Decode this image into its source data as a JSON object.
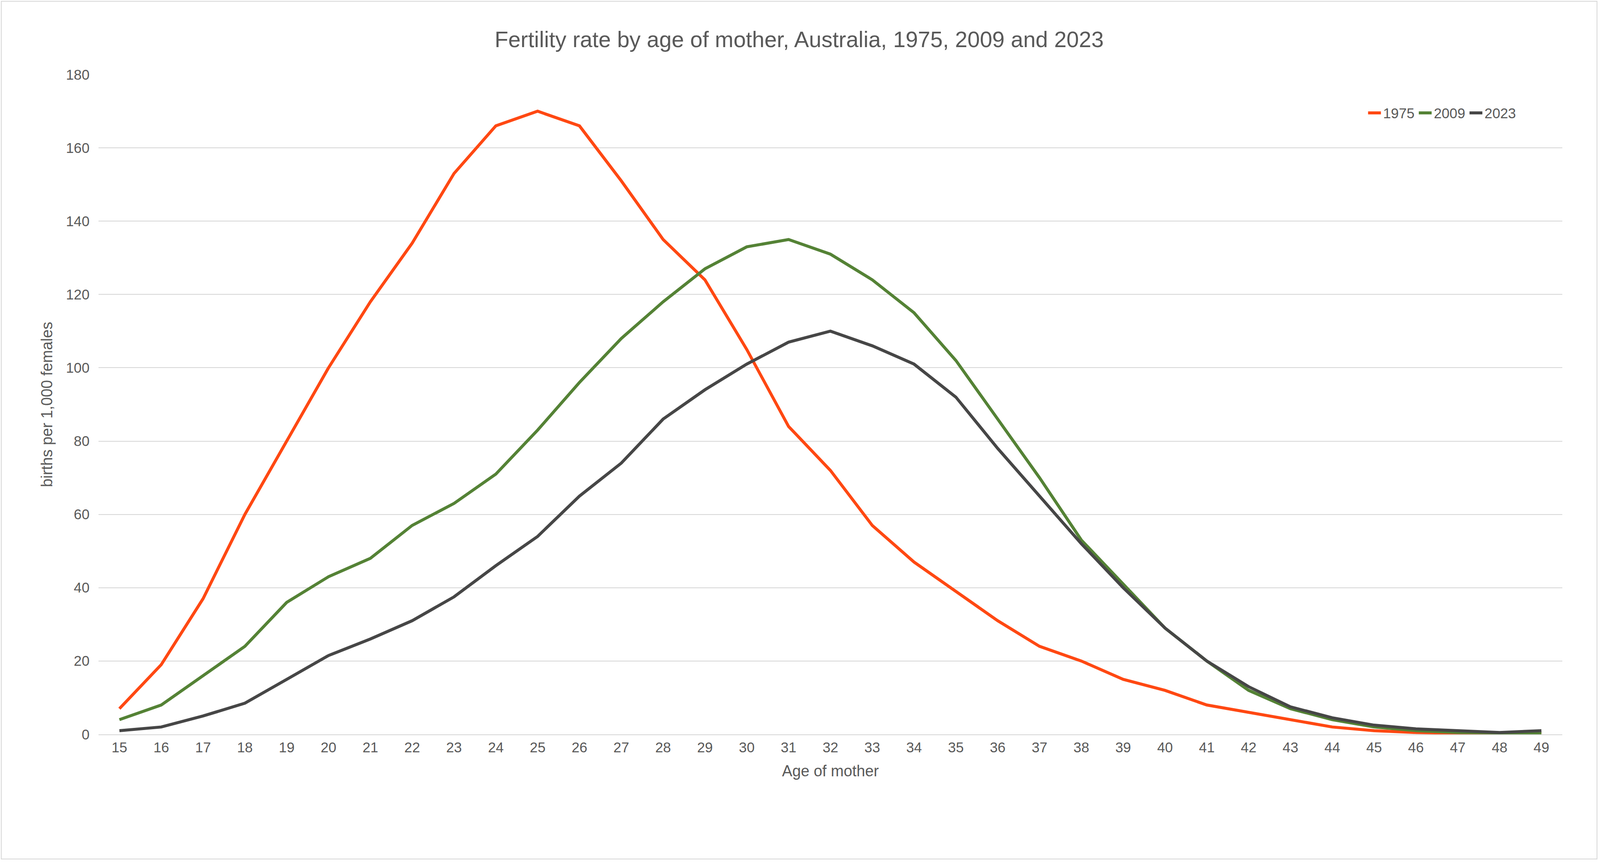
{
  "chart_data": {
    "type": "line",
    "title": "Fertility rate by age of mother, Australia, 1975, 2009 and 2023",
    "x_label": "Age of mother",
    "y_label": "births per 1,000 females",
    "x": [
      15,
      16,
      17,
      18,
      19,
      20,
      21,
      22,
      23,
      24,
      25,
      26,
      27,
      28,
      29,
      30,
      31,
      32,
      33,
      34,
      35,
      36,
      37,
      38,
      39,
      40,
      41,
      42,
      43,
      44,
      45,
      46,
      47,
      48,
      49
    ],
    "series": [
      {
        "name": "1975",
        "color": "#ff4812",
        "values": [
          7,
          19,
          37,
          60,
          80,
          100,
          118,
          134,
          153,
          166,
          170,
          166,
          151,
          135,
          124,
          105,
          84,
          72,
          57,
          47,
          39,
          31,
          24,
          20,
          15,
          12,
          8,
          6,
          4,
          2,
          1,
          0.5,
          0.3,
          0.2,
          0.2
        ]
      },
      {
        "name": "2009",
        "color": "#548235",
        "values": [
          4,
          8,
          16,
          24,
          36,
          43,
          48,
          57,
          63,
          71,
          83,
          96,
          108,
          118,
          127,
          133,
          135,
          131,
          124,
          115,
          102,
          86,
          70,
          53,
          41,
          29,
          20,
          12,
          7,
          4,
          2,
          1,
          0.5,
          0.3,
          0.3
        ]
      },
      {
        "name": "2023",
        "color": "#464646",
        "values": [
          1,
          2,
          5,
          8.5,
          15,
          21.5,
          26,
          31,
          37.5,
          46,
          54,
          65,
          74,
          86,
          94,
          101,
          107,
          110,
          106,
          101,
          92,
          78,
          65,
          52,
          40,
          29,
          20,
          13,
          7.5,
          4.5,
          2.5,
          1.5,
          1,
          0.5,
          1
        ]
      }
    ],
    "xlim": [
      14.5,
      49.5
    ],
    "xticks": [
      15,
      16,
      17,
      18,
      19,
      20,
      21,
      22,
      23,
      24,
      25,
      26,
      27,
      28,
      29,
      30,
      31,
      32,
      33,
      34,
      35,
      36,
      37,
      38,
      39,
      40,
      41,
      42,
      43,
      44,
      45,
      46,
      47,
      48,
      49
    ],
    "ylim": [
      0,
      180
    ],
    "yticks": [
      0,
      20,
      40,
      60,
      80,
      100,
      120,
      140,
      160,
      180
    ],
    "grid": true,
    "legend": "upper right"
  }
}
